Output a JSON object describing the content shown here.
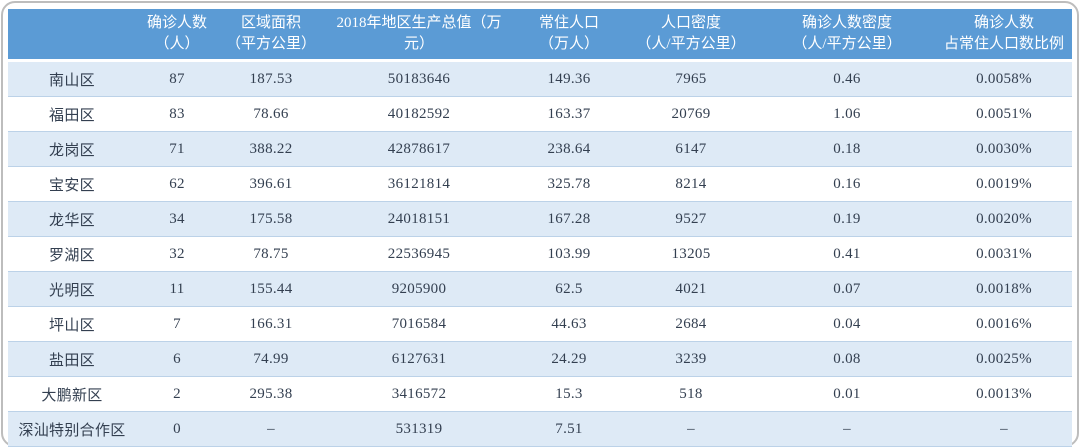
{
  "colors": {
    "header_bg": "#5B9BD5",
    "header_text": "#FFFFFF",
    "band_bg": "#DEEAF6",
    "row_border": "#BCD2E8",
    "body_text": "#333F50",
    "frame_border": "#BDBDBD"
  },
  "chart_data": {
    "type": "table",
    "columns": [
      "",
      "确诊人数\n（人）",
      "区域面积\n（平方公里）",
      "2018年地区生产总值（万\n元）",
      "常住人口\n（万人）",
      "人口密度\n（人/平方公里）",
      "确诊人数密度\n（人/平方公里）",
      "确诊人数\n占常住人口数比例"
    ],
    "rows": [
      [
        "南山区",
        "87",
        "187.53",
        "50183646",
        "149.36",
        "7965",
        "0.46",
        "0.0058%"
      ],
      [
        "福田区",
        "83",
        "78.66",
        "40182592",
        "163.37",
        "20769",
        "1.06",
        "0.0051%"
      ],
      [
        "龙岗区",
        "71",
        "388.22",
        "42878617",
        "238.64",
        "6147",
        "0.18",
        "0.0030%"
      ],
      [
        "宝安区",
        "62",
        "396.61",
        "36121814",
        "325.78",
        "8214",
        "0.16",
        "0.0019%"
      ],
      [
        "龙华区",
        "34",
        "175.58",
        "24018151",
        "167.28",
        "9527",
        "0.19",
        "0.0020%"
      ],
      [
        "罗湖区",
        "32",
        "78.75",
        "22536945",
        "103.99",
        "13205",
        "0.41",
        "0.0031%"
      ],
      [
        "光明区",
        "11",
        "155.44",
        "9205900",
        "62.5",
        "4021",
        "0.07",
        "0.0018%"
      ],
      [
        "坪山区",
        "7",
        "166.31",
        "7016584",
        "44.63",
        "2684",
        "0.04",
        "0.0016%"
      ],
      [
        "盐田区",
        "6",
        "74.99",
        "6127631",
        "24.29",
        "3239",
        "0.08",
        "0.0025%"
      ],
      [
        "大鹏新区",
        "2",
        "295.38",
        "3416572",
        "15.3",
        "518",
        "0.01",
        "0.0013%"
      ],
      [
        "深汕特别合作区",
        "0",
        "–",
        "531319",
        "7.51",
        "–",
        "–",
        "–"
      ]
    ]
  }
}
